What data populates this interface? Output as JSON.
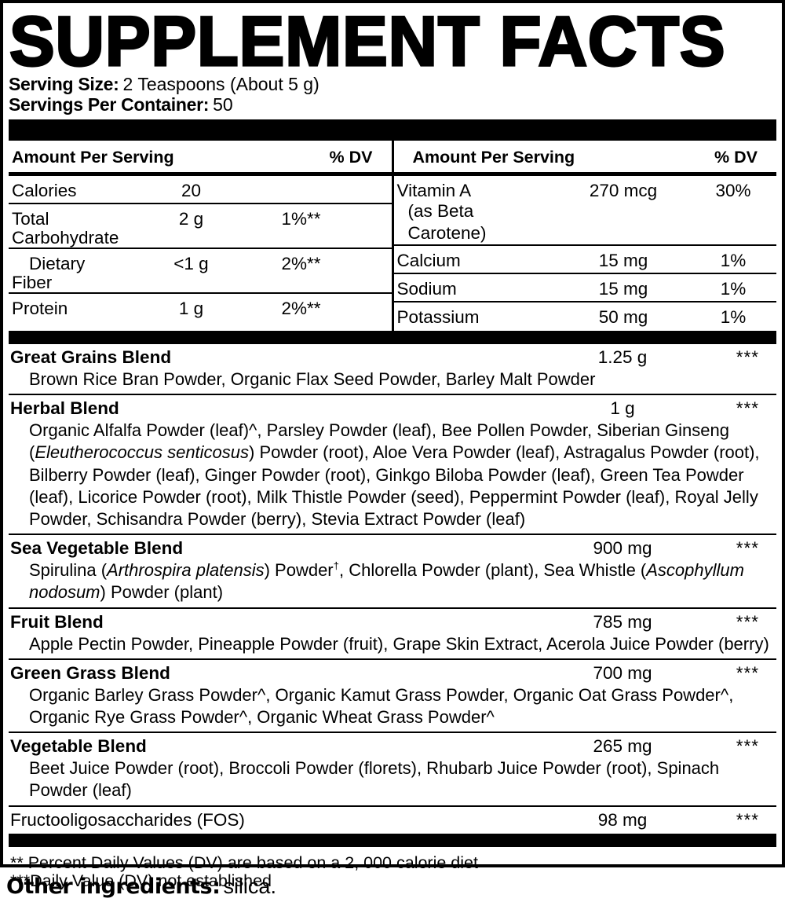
{
  "title": "SUPPLEMENT FACTS",
  "serving": {
    "size_label": "Serving Size:",
    "size_value": "2 Teaspoons (About 5 g)",
    "per_container_label": "Servings Per Container:",
    "per_container_value": "50"
  },
  "columns": {
    "header": {
      "amount_label": "Amount Per Serving",
      "dv_label": "% DV"
    },
    "left_rows": [
      {
        "name": "Calories",
        "amount": "20",
        "dv": ""
      },
      {
        "name": "Total Carbohydrate",
        "amount": "2 g",
        "dv": "1%**"
      },
      {
        "name": "Dietary Fiber",
        "amount": "<1 g",
        "dv": "2%**",
        "indent": true
      },
      {
        "name": "Protein",
        "amount": "1 g",
        "dv": "2%**"
      }
    ],
    "right_rows": [
      {
        "name": "Vitamin A",
        "sub": "(as Beta Carotene)",
        "amount": "270 mcg",
        "dv": "30%",
        "tall": true
      },
      {
        "name": "Calcium",
        "amount": "15 mg",
        "dv": "1%"
      },
      {
        "name": "Sodium",
        "amount": "15 mg",
        "dv": "1%"
      },
      {
        "name": "Potassium",
        "amount": "50 mg",
        "dv": "1%"
      }
    ]
  },
  "blends": [
    {
      "name": "Great Grains Blend",
      "amount": "1.25 g",
      "dv": "***",
      "ingredients": [
        {
          "t": "Brown Rice Bran Powder, Organic Flax Seed Powder, Barley Malt Powder"
        }
      ]
    },
    {
      "name": "Herbal Blend",
      "amount": "1 g",
      "dv": "***",
      "ingredients": [
        {
          "t": "Organic Alfalfa Powder (leaf)^, Parsley Powder (leaf), Bee Pollen Powder, Siberian Ginseng ("
        },
        {
          "t": "Eleutherococcus senticosus",
          "i": true
        },
        {
          "t": ") Powder (root), Aloe Vera Powder (leaf), Astragalus Powder (root), Bilberry Powder (leaf), Ginger Powder (root), Ginkgo Biloba Powder (leaf), Green Tea Powder (leaf), Licorice Powder (root), Milk Thistle Powder (seed), Peppermint Powder (leaf), Royal Jelly Powder, Schisandra Powder (berry), Stevia Extract Powder (leaf)"
        }
      ]
    },
    {
      "name": "Sea Vegetable Blend",
      "amount": "900 mg",
      "dv": "***",
      "ingredients": [
        {
          "t": "Spirulina ("
        },
        {
          "t": "Arthrospira platensis",
          "i": true
        },
        {
          "t": ") Powder"
        },
        {
          "t": "†",
          "s": true
        },
        {
          "t": ", Chlorella Powder (plant), Sea Whistle ("
        },
        {
          "t": "Ascophyllum nodosum",
          "i": true
        },
        {
          "t": ") Powder (plant)"
        }
      ]
    },
    {
      "name": "Fruit Blend",
      "amount": "785 mg",
      "dv": "***",
      "ingredients": [
        {
          "t": "Apple Pectin Powder, Pineapple Powder (fruit), Grape Skin Extract, Acerola Juice Powder (berry)"
        }
      ]
    },
    {
      "name": "Green Grass Blend",
      "amount": "700 mg",
      "dv": "***",
      "ingredients": [
        {
          "t": "Organic Barley Grass Powder^, Organic Kamut Grass Powder, Organic Oat Grass Powder^, Organic Rye Grass Powder^, Organic Wheat Grass Powder^"
        }
      ]
    },
    {
      "name": "Vegetable Blend",
      "amount": "265 mg",
      "dv": "***",
      "ingredients": [
        {
          "t": "Beet Juice Powder (root), Broccoli Powder (florets), Rhubarb Juice Powder (root), Spinach Powder (leaf)"
        }
      ]
    },
    {
      "name": "Fructooligosaccharides (FOS)",
      "amount": "98 mg",
      "dv": "***",
      "plain": true,
      "ingredients": []
    }
  ],
  "footnotes": [
    "** Percent Daily Values (DV) are based on a 2, 000 calorie diet",
    "***Daily Value (DV) not established"
  ],
  "other_ingredients": {
    "label": "Other ingredients:",
    "value": "silica."
  }
}
